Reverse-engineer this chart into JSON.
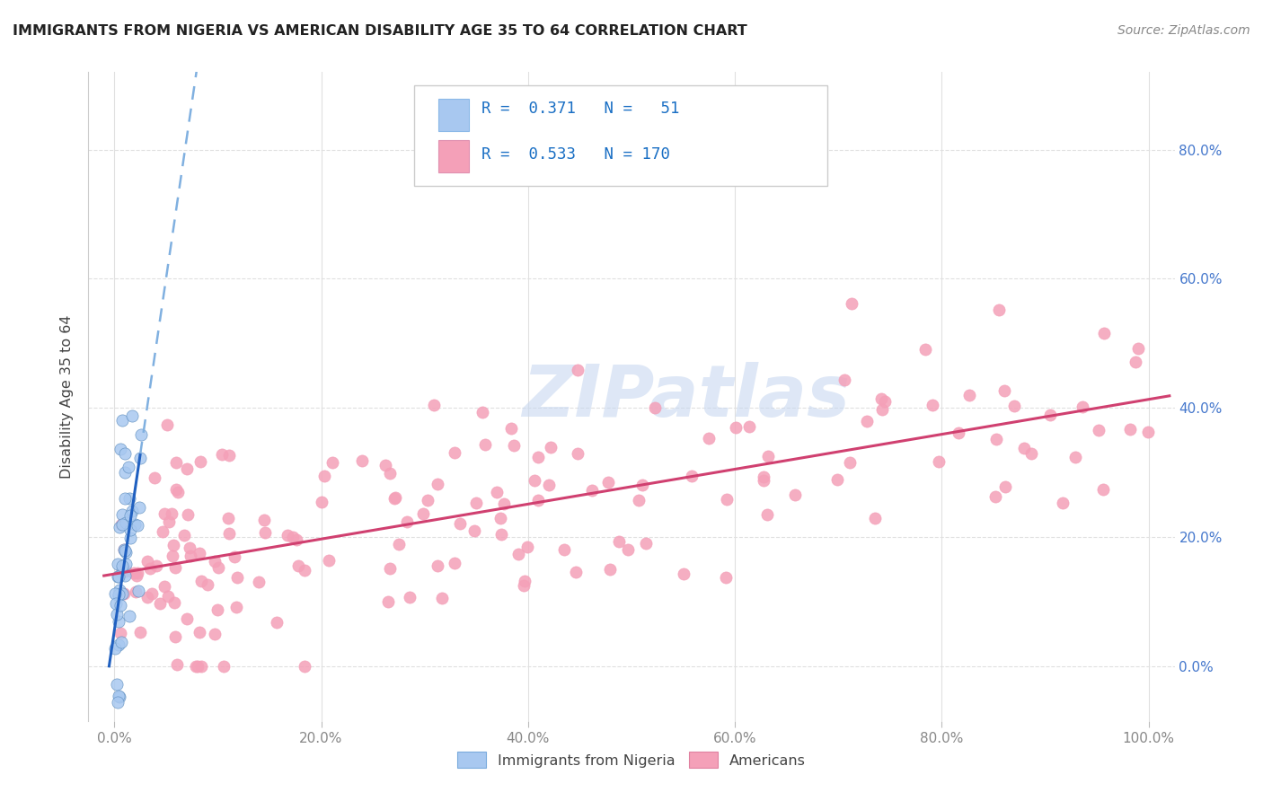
{
  "title": "IMMIGRANTS FROM NIGERIA VS AMERICAN DISABILITY AGE 35 TO 64 CORRELATION CHART",
  "source": "Source: ZipAtlas.com",
  "ylabel": "Disability Age 35 to 64",
  "legend_label1": "Immigrants from Nigeria",
  "legend_label2": "Americans",
  "R1": 0.371,
  "N1": 51,
  "R2": 0.533,
  "N2": 170,
  "color_nigeria": "#a8c8f0",
  "color_americans": "#f4a0b8",
  "trendline_nigeria_solid": "#2060c0",
  "trendline_nigeria_dashed": "#80b0e0",
  "trendline_americans": "#d04070",
  "watermark_color": "#c8d8f0",
  "background_color": "#ffffff",
  "grid_color": "#e0e0e0",
  "tick_color": "#888888",
  "title_color": "#222222",
  "source_color": "#888888"
}
